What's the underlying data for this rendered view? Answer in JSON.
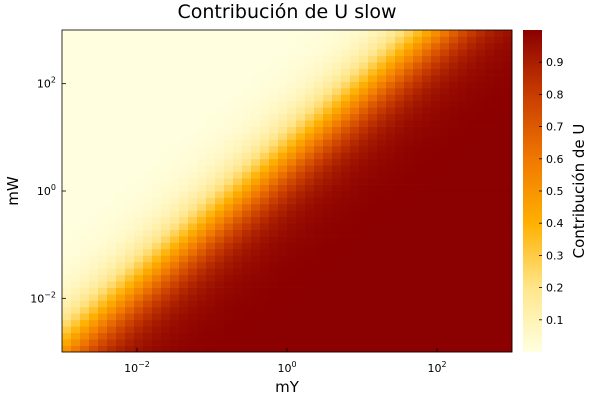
{
  "chart_data": {
    "type": "heatmap",
    "title": "Contribución de U slow",
    "xlabel": "mY",
    "ylabel": "mW",
    "x_scale": "log10",
    "y_scale": "log10",
    "xlim": [
      0.001,
      1000
    ],
    "ylim": [
      0.001,
      1000
    ],
    "x_ticks": [
      {
        "value": 0.01,
        "base": "10",
        "exp": "−2"
      },
      {
        "value": 1,
        "base": "10",
        "exp": "0"
      },
      {
        "value": 100,
        "base": "10",
        "exp": "2"
      }
    ],
    "y_ticks": [
      {
        "value": 0.01,
        "base": "10",
        "exp": "−2"
      },
      {
        "value": 1,
        "base": "10",
        "exp": "0"
      },
      {
        "value": 100,
        "base": "10",
        "exp": "2"
      }
    ],
    "grid_cells": 50,
    "transition": {
      "description": "U contribution ~1 below diagonal (mW << mY), ~0 above",
      "boundary_log_mW_at_min_log_mY": -3.0,
      "boundary_slope": 1.2,
      "boundary_width_decades": 0.42
    },
    "colorbar": {
      "label": "Contribución de U",
      "range": [
        0.0,
        1.0
      ],
      "ticks": [
        "0.1",
        "0.2",
        "0.3",
        "0.4",
        "0.5",
        "0.6",
        "0.7",
        "0.8",
        "0.9"
      ],
      "tick_values": [
        0.1,
        0.2,
        0.3,
        0.4,
        0.5,
        0.6,
        0.7,
        0.8,
        0.9
      ]
    },
    "colormap": [
      "#ffffe0",
      "#ffe68a",
      "#ffb000",
      "#f07800",
      "#c83c00",
      "#8b0000"
    ]
  }
}
